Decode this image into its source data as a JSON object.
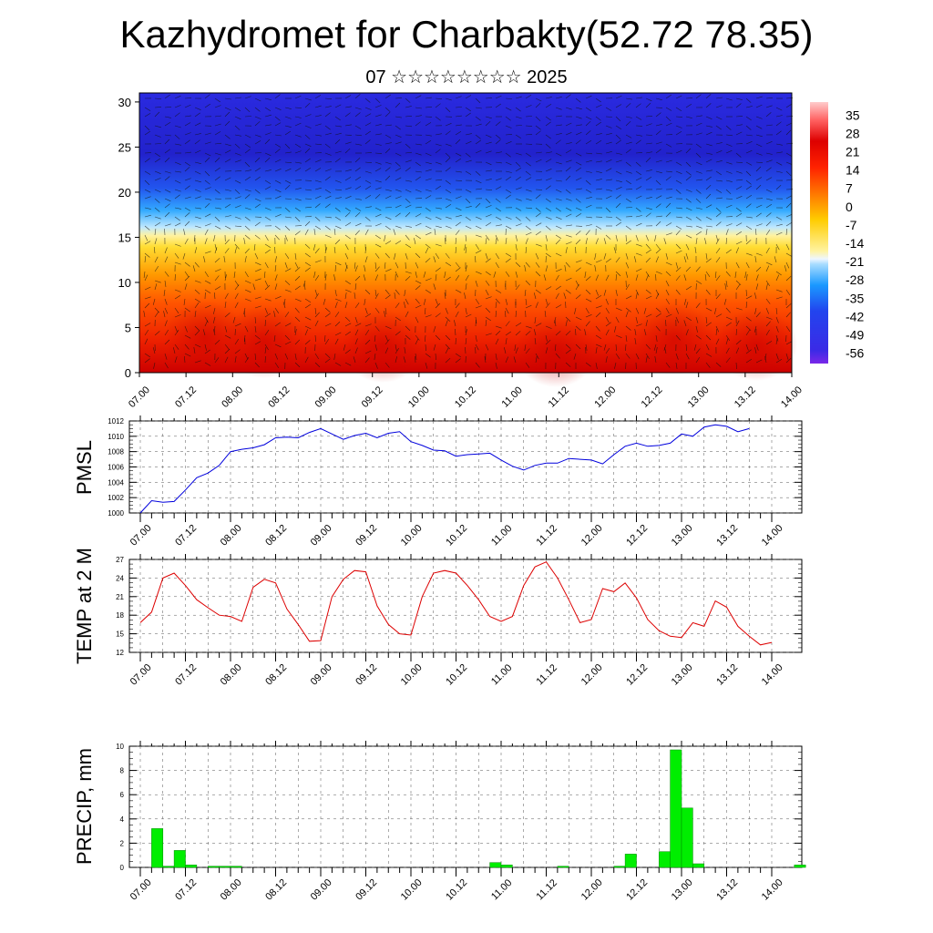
{
  "header": {
    "title": "Kazhydromet for Charbakty(52.72 78.35)",
    "subtitle": "07 ☆☆☆☆☆☆☆☆ 2025"
  },
  "colors": {
    "pmsl_line": "#0000dd",
    "temp_line": "#dd0000",
    "precip_bar": "#00ee00",
    "precip_edge": "#008800"
  },
  "time_labels": [
    "07.00",
    "07.12",
    "08.00",
    "08.12",
    "09.00",
    "09.12",
    "10.00",
    "10.12",
    "11.00",
    "11.12",
    "12.00",
    "12.12",
    "13.00",
    "13.12",
    "14.00"
  ],
  "chart_data": [
    {
      "type": "heatmap",
      "name": "cross-section",
      "x_ticks": [
        "07.00",
        "07.12",
        "08.00",
        "08.12",
        "09.00",
        "09.12",
        "10.00",
        "10.12",
        "11.00",
        "11.12",
        "12.00",
        "12.12",
        "13.00",
        "13.12",
        "14.00"
      ],
      "y_ticks": [
        0,
        5,
        10,
        15,
        20,
        25,
        30
      ],
      "ylim": [
        0,
        31
      ],
      "colorbar_labels": [
        "35",
        "28",
        "21",
        "14",
        "7",
        "0",
        "-7",
        "-14",
        "-21",
        "-28",
        "-35",
        "-42",
        "-49",
        "-56"
      ],
      "colorbar_range": [
        -60,
        40
      ],
      "overlay": "wind barbs"
    },
    {
      "type": "line",
      "ylabel": "PMSL",
      "ylim": [
        1000,
        1012
      ],
      "y_ticks": [
        1000,
        1002,
        1004,
        1006,
        1008,
        1010,
        1012
      ],
      "x_start": "07.00",
      "x_step_hours": 3,
      "values": [
        1000.0,
        1001.6,
        1001.4,
        1001.5,
        1003.0,
        1004.6,
        1005.2,
        1006.2,
        1008.0,
        1008.3,
        1008.5,
        1008.9,
        1009.8,
        1009.9,
        1009.8,
        1010.5,
        1011.0,
        1010.3,
        1009.6,
        1010.1,
        1010.4,
        1009.8,
        1010.4,
        1010.6,
        1009.3,
        1008.8,
        1008.2,
        1008.1,
        1007.4,
        1007.6,
        1007.7,
        1007.8,
        1006.9,
        1006.1,
        1005.6,
        1006.2,
        1006.5,
        1006.5,
        1007.1,
        1007.0,
        1006.9,
        1006.4,
        1007.6,
        1008.7,
        1009.1,
        1008.7,
        1008.8,
        1009.1,
        1010.3,
        1010.0,
        1011.2,
        1011.5,
        1011.3,
        1010.6,
        1011.0
      ]
    },
    {
      "type": "line",
      "ylabel": "TEMP at 2 M",
      "ylim": [
        12,
        27
      ],
      "y_ticks": [
        12,
        15,
        18,
        21,
        24,
        27
      ],
      "x_start": "07.00",
      "x_step_hours": 3,
      "values": [
        16.8,
        18.5,
        24.0,
        24.8,
        22.8,
        20.5,
        19.2,
        18.0,
        17.8,
        17.0,
        22.5,
        23.8,
        23.2,
        19.0,
        16.5,
        13.8,
        13.9,
        21.0,
        23.8,
        25.2,
        25.0,
        19.5,
        16.5,
        15.0,
        14.8,
        21.0,
        24.8,
        25.2,
        24.8,
        22.8,
        20.5,
        17.8,
        17.0,
        17.8,
        22.8,
        25.8,
        26.6,
        24.0,
        20.5,
        16.8,
        17.3,
        22.3,
        21.8,
        23.2,
        20.8,
        17.3,
        15.5,
        14.6,
        14.4,
        16.8,
        16.2,
        20.3,
        19.3,
        16.2,
        14.6,
        13.2,
        13.6
      ]
    },
    {
      "type": "bar",
      "ylabel": "PRECIP, mm",
      "ylim": [
        0,
        10
      ],
      "y_ticks": [
        0,
        2,
        4,
        6,
        8,
        10
      ],
      "x_start": "07.00",
      "x_step_hours": 3,
      "values": [
        0,
        3.2,
        0.1,
        1.4,
        0.2,
        0,
        0.1,
        0.1,
        0.1,
        0,
        0,
        0,
        0,
        0,
        0,
        0,
        0,
        0,
        0,
        0,
        0,
        0,
        0,
        0,
        0,
        0,
        0,
        0,
        0,
        0,
        0,
        0.4,
        0.2,
        0,
        0,
        0,
        0,
        0.1,
        0,
        0,
        0,
        0,
        0.1,
        1.1,
        0,
        0,
        1.3,
        9.7,
        4.9,
        0.3,
        0,
        0,
        0,
        0,
        0,
        0,
        0,
        0,
        0.2,
        0,
        0,
        0,
        0,
        0,
        0,
        0,
        0
      ]
    }
  ]
}
